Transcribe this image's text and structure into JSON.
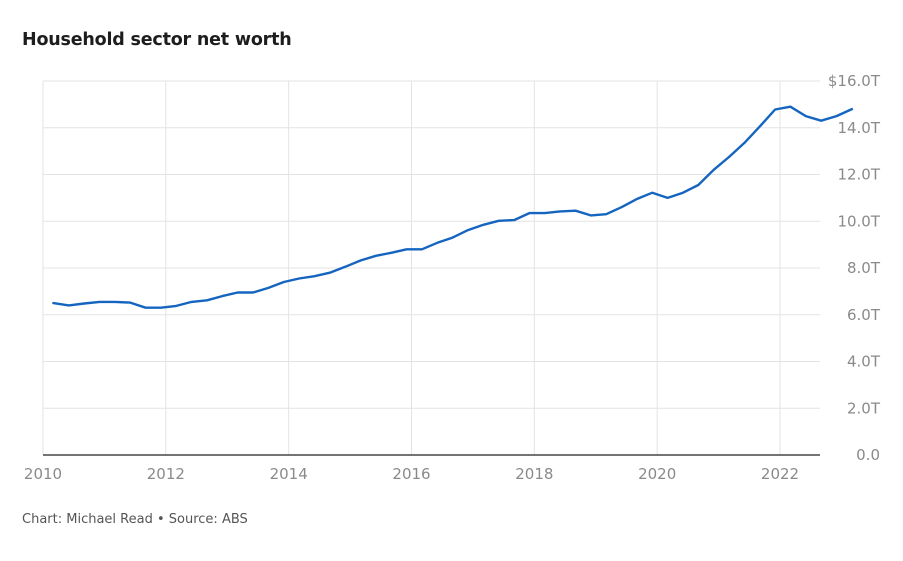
{
  "chart_data": {
    "type": "line",
    "title": "Household sector net worth",
    "footer": {
      "credit": "Chart: Michael Read",
      "separator": "•",
      "source": "Source: ABS"
    },
    "xlabel": "",
    "ylabel": "",
    "x_ticks": [
      "2010",
      "2012",
      "2014",
      "2016",
      "2018",
      "2020",
      "2022"
    ],
    "y_ticks": [
      "0.0",
      "2.0T",
      "4.0T",
      "6.0T",
      "8.0T",
      "10.0T",
      "12.0T",
      "14.0T",
      "$16.0T"
    ],
    "xlim": [
      2010,
      2023.4
    ],
    "ylim": [
      0,
      16
    ],
    "grid": true,
    "colors": {
      "line": "#1565c0",
      "grid": "#e3e3e3",
      "axis": "#222222"
    },
    "series": [
      {
        "x": [
          2010.17,
          2010.42,
          2010.67,
          2010.92,
          2011.17,
          2011.42,
          2011.67,
          2011.92,
          2012.17,
          2012.42,
          2012.67,
          2012.92,
          2013.17,
          2013.42,
          2013.67,
          2013.92,
          2014.17,
          2014.42,
          2014.67,
          2014.92,
          2015.17,
          2015.42,
          2015.67,
          2015.92,
          2016.17,
          2016.42,
          2016.67,
          2016.92,
          2017.17,
          2017.42,
          2017.67,
          2017.92,
          2018.17,
          2018.42,
          2018.67,
          2018.92,
          2019.17,
          2019.42,
          2019.67,
          2019.92,
          2020.17,
          2020.42,
          2020.67,
          2020.92,
          2021.17,
          2021.42,
          2021.67,
          2021.92,
          2022.17,
          2022.42,
          2022.67,
          2022.92,
          2023.17
        ],
        "values": [
          6.5,
          6.4,
          6.48,
          6.55,
          6.55,
          6.52,
          6.3,
          6.3,
          6.38,
          6.55,
          6.62,
          6.8,
          6.95,
          6.95,
          7.15,
          7.4,
          7.55,
          7.65,
          7.8,
          8.05,
          8.32,
          8.52,
          8.65,
          8.8,
          8.8,
          9.08,
          9.3,
          9.62,
          9.85,
          10.02,
          10.05,
          10.35,
          10.35,
          10.42,
          10.45,
          10.25,
          10.3,
          10.6,
          10.95,
          11.22,
          11.0,
          11.22,
          11.55,
          12.2,
          12.75,
          13.35,
          14.05,
          14.78,
          14.9,
          14.5,
          14.3,
          14.5,
          14.8
        ]
      }
    ]
  }
}
